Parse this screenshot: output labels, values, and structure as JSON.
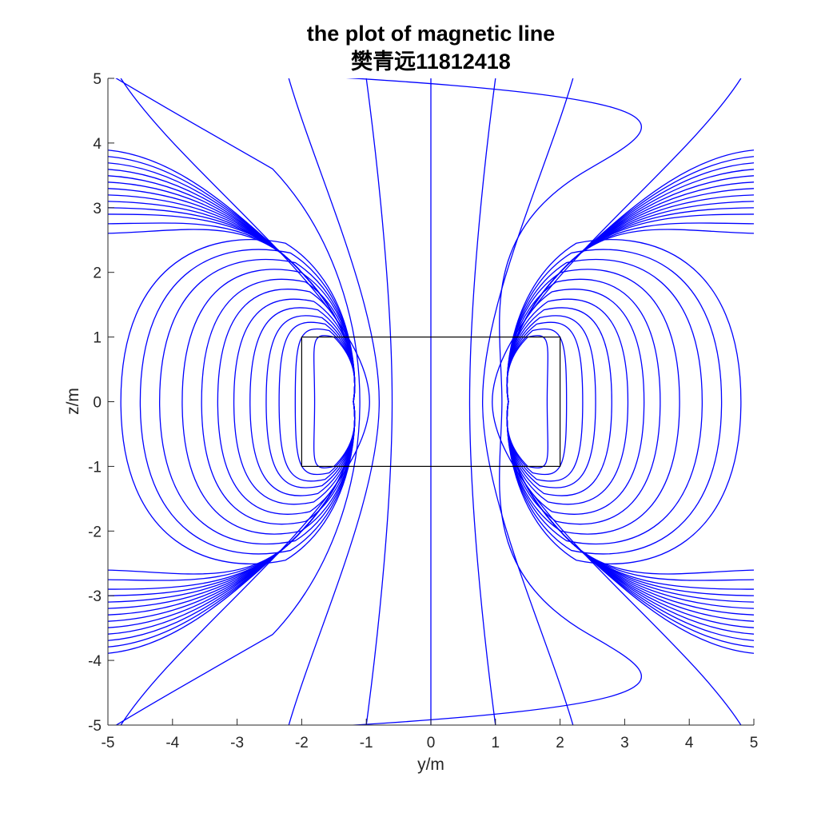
{
  "chart_data": {
    "type": "line",
    "title": [
      "the plot of magnetic line",
      "樊青远11812418"
    ],
    "xlabel": "y/m",
    "ylabel": "z/m",
    "xlim": [
      -5,
      5
    ],
    "ylim": [
      -5,
      5
    ],
    "xticks": [
      "-5",
      "-4",
      "-3",
      "-2",
      "-1",
      "0",
      "1",
      "2",
      "3",
      "4",
      "5"
    ],
    "yticks": [
      "5",
      "4",
      "3",
      "2",
      "1",
      "0",
      "-1",
      "-2",
      "-3",
      "-4",
      "-5"
    ],
    "grid": false,
    "line_color": "#0000ff",
    "box_color": "#000000",
    "rectangle": {
      "y": [
        -2,
        2
      ],
      "z": [
        -1,
        1
      ]
    },
    "series": [
      {
        "kind": "closed_loop",
        "y_outer": -1.8,
        "z_top": 1.0
      },
      {
        "kind": "closed_loop",
        "y_outer": -2.1,
        "z_top": 1.1
      },
      {
        "kind": "closed_loop",
        "y_outer": -2.35,
        "z_top": 1.2
      },
      {
        "kind": "closed_loop",
        "y_outer": -2.55,
        "z_top": 1.3
      },
      {
        "kind": "closed_loop",
        "y_outer": -2.8,
        "z_top": 1.42
      },
      {
        "kind": "closed_loop",
        "y_outer": -3.05,
        "z_top": 1.55
      },
      {
        "kind": "closed_loop",
        "y_outer": -3.3,
        "z_top": 1.7
      },
      {
        "kind": "closed_loop",
        "y_outer": -3.55,
        "z_top": 1.85
      },
      {
        "kind": "closed_loop",
        "y_outer": -3.85,
        "z_top": 2.0
      },
      {
        "kind": "closed_loop",
        "y_outer": -4.2,
        "z_top": 2.15
      },
      {
        "kind": "closed_loop",
        "y_outer": -4.5,
        "z_top": 2.3
      },
      {
        "kind": "closed_loop",
        "y_outer": -4.8,
        "z_top": 2.45
      },
      {
        "kind": "edge_exit",
        "z_exit": 2.6
      },
      {
        "kind": "edge_exit",
        "z_exit": 2.75
      },
      {
        "kind": "edge_exit",
        "z_exit": 2.9
      },
      {
        "kind": "edge_exit",
        "z_exit": 3.0
      },
      {
        "kind": "edge_exit",
        "z_exit": 3.1
      },
      {
        "kind": "edge_exit",
        "z_exit": 3.2
      },
      {
        "kind": "edge_exit",
        "z_exit": 3.3
      },
      {
        "kind": "edge_exit",
        "z_exit": 3.4
      },
      {
        "kind": "edge_exit",
        "z_exit": 3.5
      },
      {
        "kind": "edge_exit",
        "z_exit": 3.6
      },
      {
        "kind": "edge_exit",
        "z_exit": 3.7
      },
      {
        "kind": "edge_exit",
        "z_exit": 3.8
      },
      {
        "kind": "edge_exit",
        "z_exit": 3.9
      },
      {
        "kind": "open",
        "y_mid": -1.1,
        "y_end": -3.5,
        "end_on": "edge"
      },
      {
        "kind": "open",
        "y_mid": -0.95,
        "y_end": -4.8,
        "end_on": "top"
      },
      {
        "kind": "open",
        "y_mid": -0.8,
        "y_end": -2.2,
        "end_on": "top"
      },
      {
        "kind": "open",
        "y_mid": -0.6,
        "y_end": -1.0,
        "end_on": "top"
      },
      {
        "kind": "axis",
        "y": 0
      },
      {
        "kind": "open",
        "y_mid": 0.6,
        "y_end": 1.0,
        "end_on": "top"
      },
      {
        "kind": "open",
        "y_mid": 0.8,
        "y_end": 2.2,
        "end_on": "top"
      },
      {
        "kind": "open",
        "y_mid": 0.95,
        "y_end": 4.8,
        "end_on": "top"
      },
      {
        "kind": "open",
        "y_mid": 1.1,
        "y_end": 3.5,
        "end_on": "edge"
      }
    ]
  }
}
